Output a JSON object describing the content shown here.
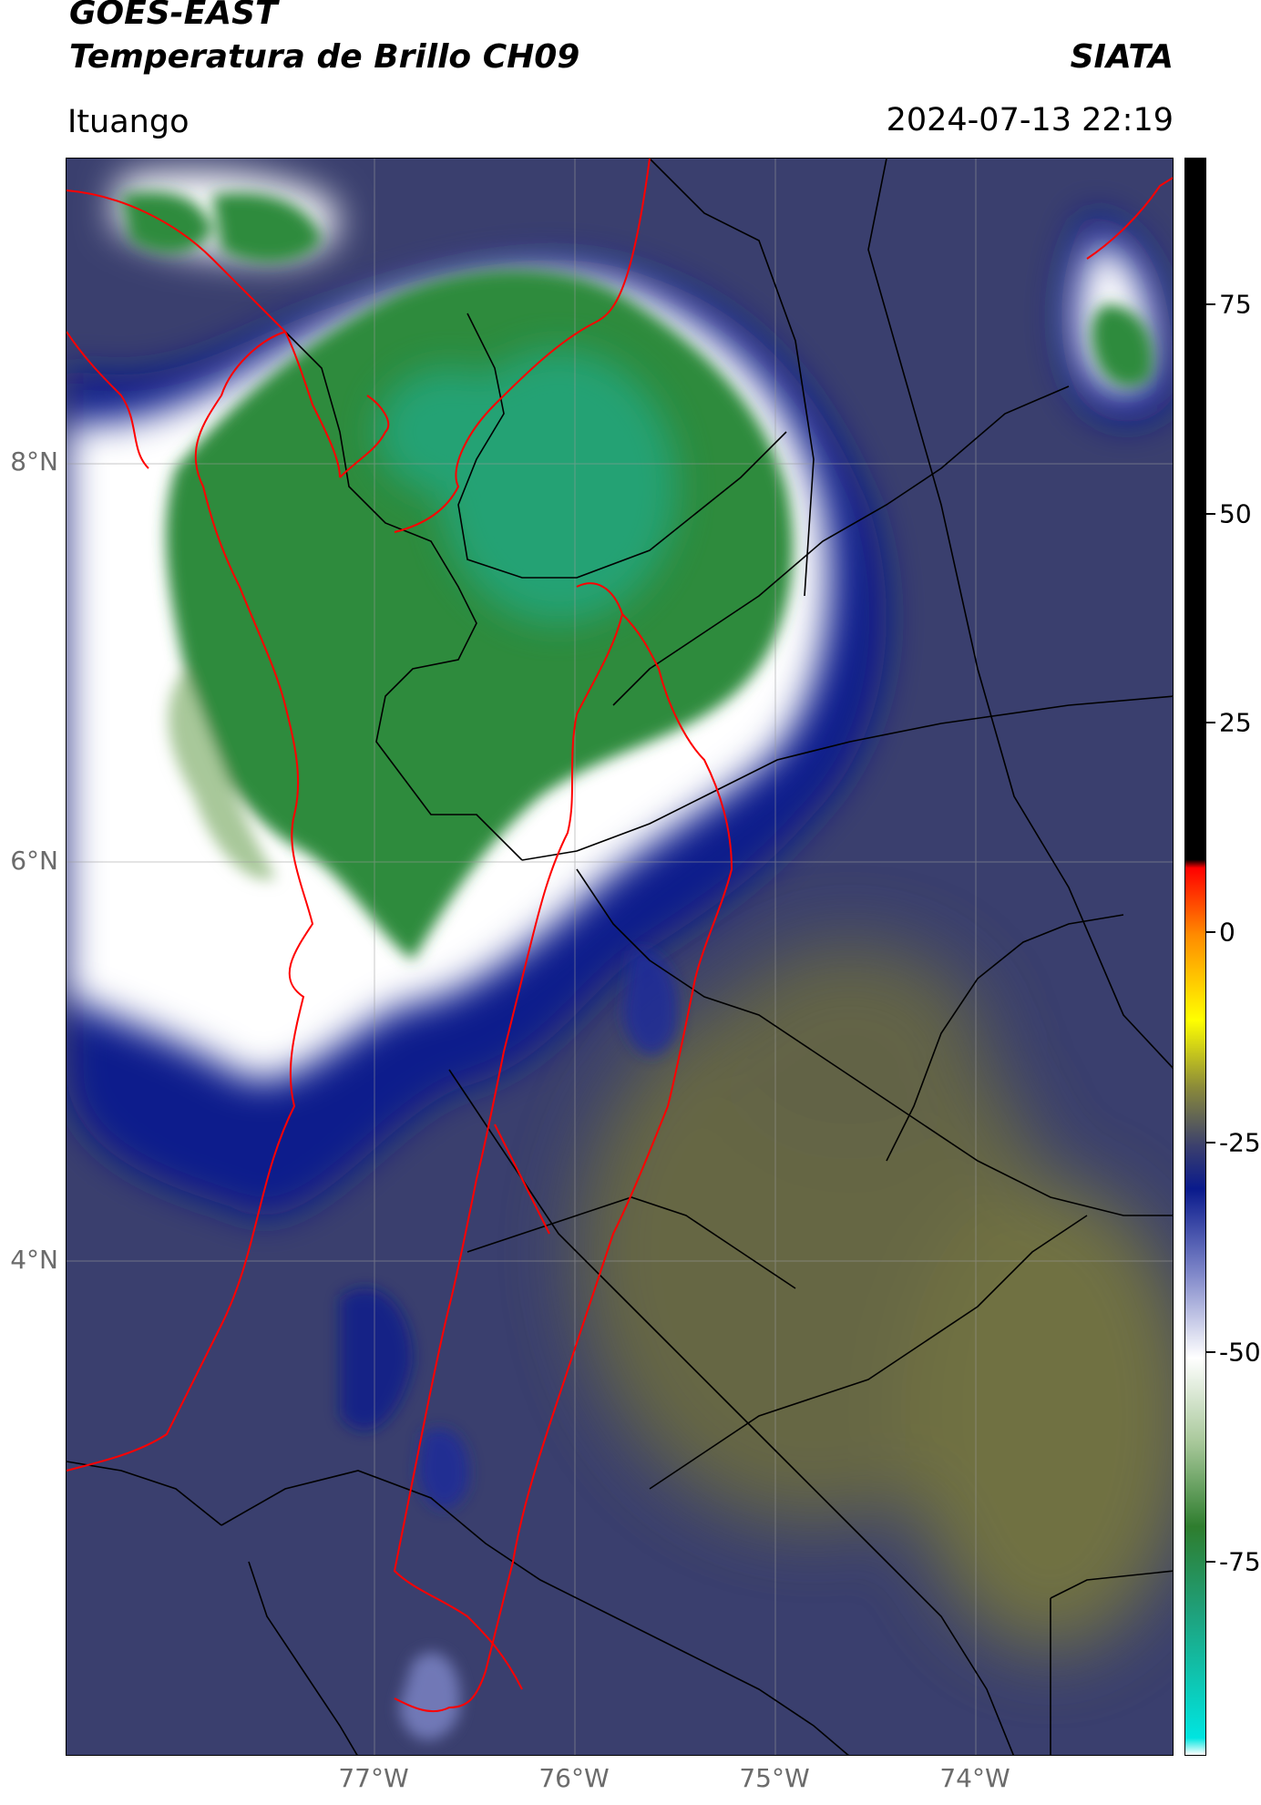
{
  "header": {
    "satellite": "GOES-EAST",
    "product": "Temperatura de Brillo CH09",
    "organization": "SIATA",
    "location": "Ituango",
    "timestamp": "2024-07-13 22:19"
  },
  "map": {
    "lat_labels": [
      "8°N",
      "6°N",
      "4°N"
    ],
    "lon_labels": [
      "77°W",
      "76°W",
      "75°W",
      "74°W"
    ]
  },
  "colorbar": {
    "labels": [
      "75",
      "50",
      "25",
      "0",
      "-25",
      "-50",
      "-75"
    ],
    "stops": [
      {
        "value": -97,
        "color": "#ffffff"
      },
      {
        "value": -95,
        "color": "#00e5e0"
      },
      {
        "value": -80,
        "color": "#1fa07a"
      },
      {
        "value": -70,
        "color": "#2e7d2e"
      },
      {
        "value": -60,
        "color": "#a8c89a"
      },
      {
        "value": -50,
        "color": "#ffffff"
      },
      {
        "value": -40,
        "color": "#7f87c9"
      },
      {
        "value": -30,
        "color": "#0a1a8c"
      },
      {
        "value": -25,
        "color": "#3a3f6e"
      },
      {
        "value": -18,
        "color": "#8a8a3a"
      },
      {
        "value": -10,
        "color": "#ffff00"
      },
      {
        "value": 0,
        "color": "#ff8c00"
      },
      {
        "value": 8,
        "color": "#ff0000"
      },
      {
        "value": 9,
        "color": "#000000"
      },
      {
        "value": 92,
        "color": "#000000"
      }
    ],
    "colors": {
      "outside_background": "#3a3f6e",
      "warm_region": "#7a7a3c",
      "deep_convection": "#2e8b3e",
      "cold_core": "#22a882",
      "department_border": "#ff0000",
      "admin_border": "#000000"
    }
  }
}
